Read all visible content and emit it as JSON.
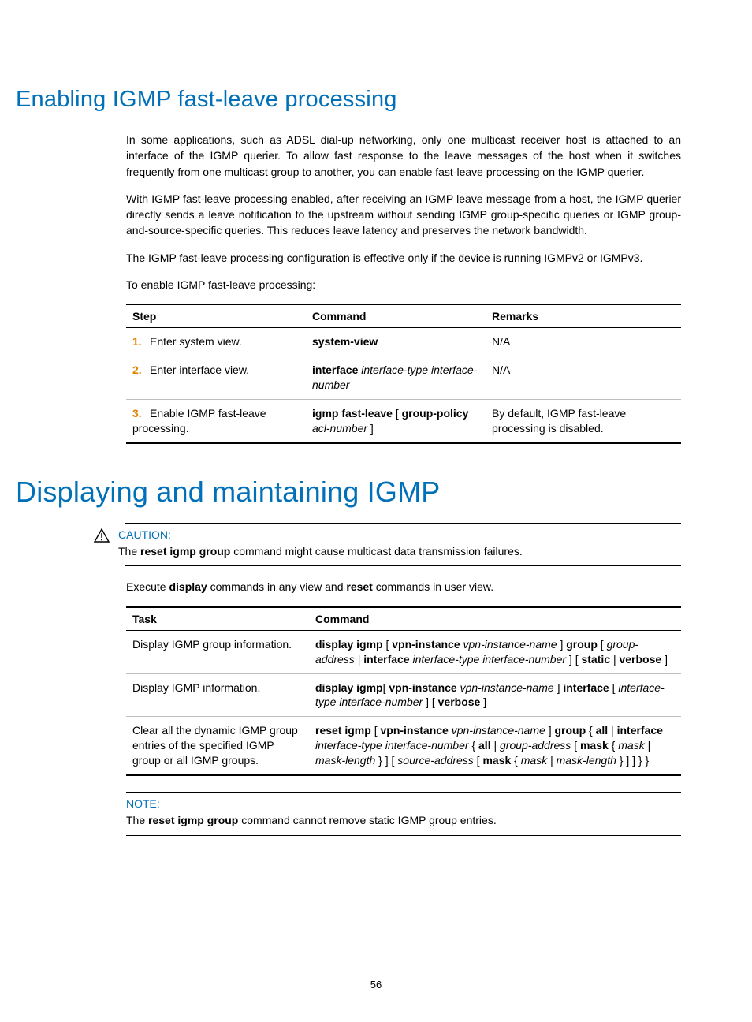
{
  "colors": {
    "heading": "#0070b8",
    "accent": "#e08300",
    "text": "#000000",
    "rule_light": "#bfbfbf",
    "rule_dark": "#000000",
    "background": "#ffffff"
  },
  "typography": {
    "body_pt": 14,
    "h2_pt": 29,
    "h1_pt": 36,
    "font_family": "Arial"
  },
  "page_number": "56",
  "section1": {
    "title": "Enabling IGMP fast-leave processing",
    "paras": [
      "In some applications, such as ADSL dial-up networking, only one multicast receiver host is attached to an interface of the IGMP querier. To allow fast response to the leave messages of the host when it switches frequently from one multicast group to another, you can enable fast-leave processing on the IGMP querier.",
      "With IGMP fast-leave processing enabled, after receiving an IGMP leave message from a host, the IGMP querier directly sends a leave notification to the upstream without sending IGMP group-specific queries or IGMP group-and-source-specific queries. This reduces leave latency and preserves the network bandwidth.",
      "The IGMP fast-leave processing configuration is effective only if the device is running IGMPv2 or IGMPv3.",
      "To enable IGMP fast-leave processing:"
    ]
  },
  "table1": {
    "headers": {
      "step": "Step",
      "command": "Command",
      "remarks": "Remarks"
    },
    "rows": [
      {
        "num": "1.",
        "step": "Enter system view.",
        "command_bold": "system-view",
        "command_italic": "",
        "remarks": "N/A"
      },
      {
        "num": "2.",
        "step": "Enter interface view.",
        "command_bold": "interface",
        "command_italic": " interface-type interface-number",
        "remarks": "N/A"
      },
      {
        "num": "3.",
        "step": "Enable IGMP fast-leave processing.",
        "command_bold": "igmp fast-leave",
        "mid": " [ ",
        "command_bold2": "group-policy",
        "command_italic": " acl-number",
        "tail": " ]",
        "remarks": "By default, IGMP fast-leave processing is disabled."
      }
    ]
  },
  "section2": {
    "title": "Displaying and maintaining IGMP"
  },
  "caution": {
    "label": "CAUTION:",
    "text_pre": "The ",
    "text_bold": "reset igmp group",
    "text_post": " command might cause multicast data transmission failures."
  },
  "exec_line": {
    "pre": "Execute ",
    "b1": "display",
    "mid": " commands in any view and ",
    "b2": "reset",
    "post": " commands in user view."
  },
  "table2": {
    "headers": {
      "task": "Task",
      "command": "Command"
    },
    "rows": [
      {
        "task": "Display IGMP group information.",
        "segments": [
          {
            "t": "display igmp",
            "b": true
          },
          {
            "t": " [ "
          },
          {
            "t": "vpn-instance",
            "b": true
          },
          {
            "t": " vpn-instance-name ",
            "i": true
          },
          {
            "t": "] "
          },
          {
            "t": "group",
            "b": true
          },
          {
            "t": " [ "
          },
          {
            "t": "group-address",
            "i": true
          },
          {
            "t": " | "
          },
          {
            "t": "interface",
            "b": true
          },
          {
            "t": " interface-type interface-number ",
            "i": true
          },
          {
            "t": "] [ "
          },
          {
            "t": "static",
            "b": true
          },
          {
            "t": " | "
          },
          {
            "t": "verbose",
            "b": true
          },
          {
            "t": " ]"
          }
        ]
      },
      {
        "task": "Display IGMP information.",
        "segments": [
          {
            "t": "display igmp",
            "b": true
          },
          {
            "t": "[ "
          },
          {
            "t": "vpn-instance",
            "b": true
          },
          {
            "t": " vpn-instance-name ",
            "i": true
          },
          {
            "t": "] "
          },
          {
            "t": "interface",
            "b": true
          },
          {
            "t": " [ "
          },
          {
            "t": "interface-type interface-number ",
            "i": true
          },
          {
            "t": "] [ "
          },
          {
            "t": "verbose",
            "b": true
          },
          {
            "t": " ]"
          }
        ]
      },
      {
        "task": "Clear all the dynamic IGMP group entries of the specified IGMP group or all IGMP groups.",
        "segments": [
          {
            "t": "reset igmp",
            "b": true
          },
          {
            "t": " [ "
          },
          {
            "t": "vpn-instance",
            "b": true
          },
          {
            "t": " vpn-instance-name ",
            "i": true
          },
          {
            "t": "] "
          },
          {
            "t": "group",
            "b": true
          },
          {
            "t": " { "
          },
          {
            "t": "all",
            "b": true
          },
          {
            "t": " | "
          },
          {
            "t": "interface",
            "b": true
          },
          {
            "t": " interface-type interface-number ",
            "i": true
          },
          {
            "t": "{ "
          },
          {
            "t": "all",
            "b": true
          },
          {
            "t": " | "
          },
          {
            "t": "group-address ",
            "i": true
          },
          {
            "t": "[ "
          },
          {
            "t": "mask",
            "b": true
          },
          {
            "t": " { "
          },
          {
            "t": "mask ",
            "i": true
          },
          {
            "t": "| "
          },
          {
            "t": "mask-length ",
            "i": true
          },
          {
            "t": "} ] [ "
          },
          {
            "t": "source-address ",
            "i": true
          },
          {
            "t": "[ "
          },
          {
            "t": "mask",
            "b": true
          },
          {
            "t": " { "
          },
          {
            "t": "mask ",
            "i": true
          },
          {
            "t": "| "
          },
          {
            "t": " mask-length ",
            "i": true
          },
          {
            "t": "} ] ] } }"
          }
        ]
      }
    ]
  },
  "note": {
    "label": "NOTE:",
    "text_pre": "The ",
    "text_bold": "reset igmp group",
    "text_post": " command cannot remove static IGMP group entries."
  }
}
